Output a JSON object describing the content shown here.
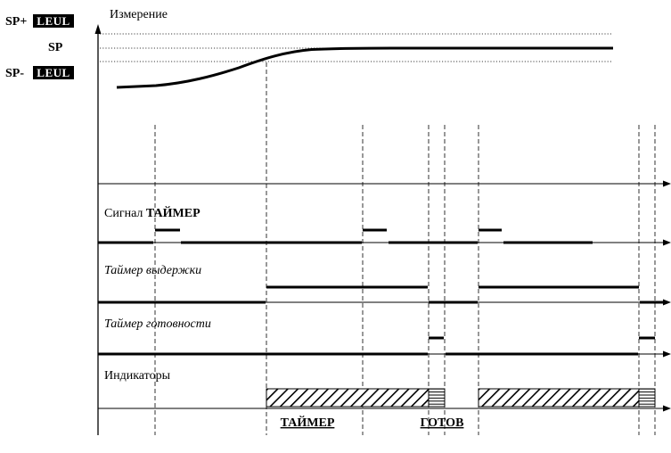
{
  "measure_label": "Измерение",
  "levels": {
    "sp_plus": {
      "prefix": "SP+",
      "badge": "LEUL"
    },
    "sp": {
      "label": "SP"
    },
    "sp_minus": {
      "prefix": "SP-",
      "badge": "LEUL"
    }
  },
  "signal_row": {
    "label_prefix": "Сигнал ",
    "label_bold": "ТАЙМЕР"
  },
  "hold_timer_label": "Таймер выдержки",
  "ready_timer_label": "Таймер готовности",
  "indicators_label": "Индикаторы",
  "bottom_labels": {
    "timer": "ТАЙМЕР",
    "ready": "ГОТОВ"
  },
  "colors": {
    "line": "#000000",
    "badge_bg": "#000000",
    "badge_text": "#ffffff",
    "background": "#ffffff"
  }
}
